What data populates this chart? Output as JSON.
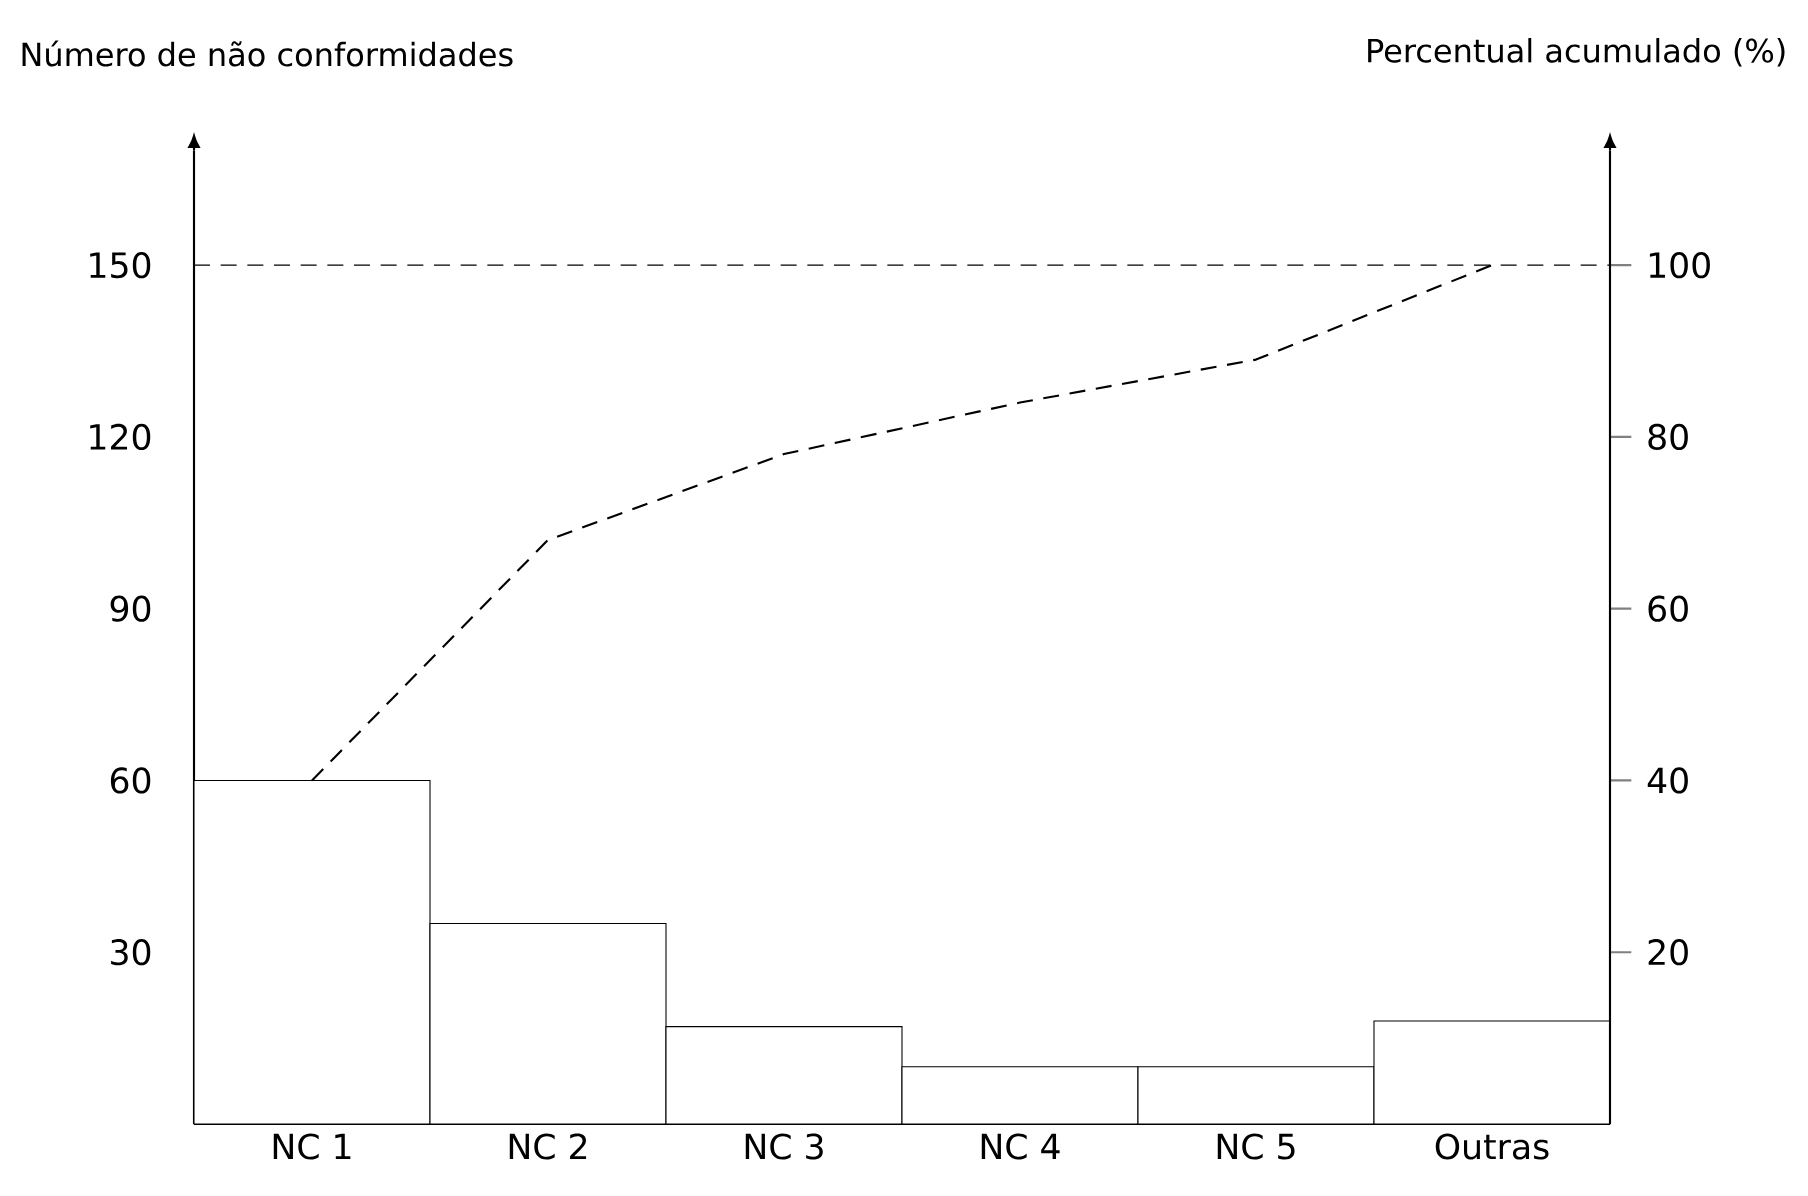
{
  "chart_data": {
    "type": "bar",
    "ylabel": "Número de não conformidades",
    "y2label": "Percentual acumulado (%)",
    "categories": [
      "NC 1",
      "NC 2",
      "NC 3",
      "NC 4",
      "NC 5",
      "Outras"
    ],
    "series": [
      {
        "color": "#ffffff",
        "values": [
          60,
          35,
          17,
          10,
          10,
          18
        ]
      },
      {
        "type": "line",
        "axis": "y2",
        "color": "#000000",
        "line_style": "dashed",
        "marker": "none",
        "values": [
          40,
          68,
          78,
          84,
          89,
          100
        ]
      }
    ],
    "ylim": [
      0,
      170
    ],
    "yticks": [
      30,
      60,
      90,
      120,
      150
    ],
    "y2lim": [
      0,
      113.33
    ],
    "y2ticks": [
      20,
      40,
      60,
      80,
      100
    ],
    "ref_lines": [
      {
        "axis": "y",
        "value": 150,
        "color": "#000000",
        "line_style": "dashed"
      }
    ],
    "grid": false
  }
}
